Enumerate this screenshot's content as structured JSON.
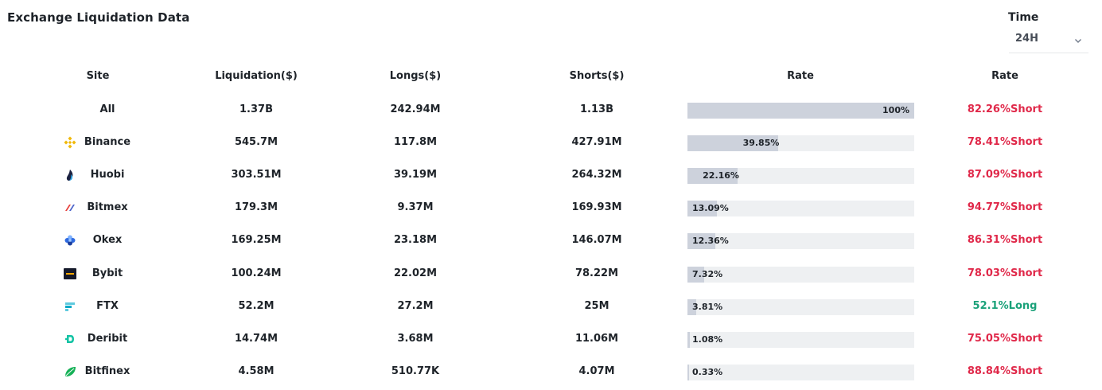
{
  "title": "Exchange Liquidation Data",
  "time": {
    "label": "Time",
    "selected": "24H"
  },
  "headers": {
    "site": "Site",
    "liquidation": "Liquidation($)",
    "longs": "Longs($)",
    "shorts": "Shorts($)",
    "rate_bar": "Rate",
    "rate_text": "Rate"
  },
  "colors": {
    "short": "#e0294a",
    "long": "#1aa179",
    "bar_fill": "#cdd2dc",
    "bar_track": "#eef0f2"
  },
  "rows": [
    {
      "site": "All",
      "icon": "",
      "liquidation": "1.37B",
      "longs": "242.94M",
      "shorts": "1.13B",
      "rate_bar_label": "100%",
      "rate_bar_value": 100,
      "rate_text": "82.26%Short",
      "side": "short"
    },
    {
      "site": "Binance",
      "icon": "binance-icon",
      "liquidation": "545.7M",
      "longs": "117.8M",
      "shorts": "427.91M",
      "rate_bar_label": "39.85%",
      "rate_bar_value": 39.85,
      "rate_text": "78.41%Short",
      "side": "short"
    },
    {
      "site": "Huobi",
      "icon": "huobi-icon",
      "liquidation": "303.51M",
      "longs": "39.19M",
      "shorts": "264.32M",
      "rate_bar_label": "22.16%",
      "rate_bar_value": 22.16,
      "rate_text": "87.09%Short",
      "side": "short"
    },
    {
      "site": "Bitmex",
      "icon": "bitmex-icon",
      "liquidation": "179.3M",
      "longs": "9.37M",
      "shorts": "169.93M",
      "rate_bar_label": "13.09%",
      "rate_bar_value": 13.09,
      "rate_text": "94.77%Short",
      "side": "short"
    },
    {
      "site": "Okex",
      "icon": "okex-icon",
      "liquidation": "169.25M",
      "longs": "23.18M",
      "shorts": "146.07M",
      "rate_bar_label": "12.36%",
      "rate_bar_value": 12.36,
      "rate_text": "86.31%Short",
      "side": "short"
    },
    {
      "site": "Bybit",
      "icon": "bybit-icon",
      "liquidation": "100.24M",
      "longs": "22.02M",
      "shorts": "78.22M",
      "rate_bar_label": "7.32%",
      "rate_bar_value": 7.32,
      "rate_text": "78.03%Short",
      "side": "short"
    },
    {
      "site": "FTX",
      "icon": "ftx-icon",
      "liquidation": "52.2M",
      "longs": "27.2M",
      "shorts": "25M",
      "rate_bar_label": "3.81%",
      "rate_bar_value": 3.81,
      "rate_text": "52.1%Long",
      "side": "long"
    },
    {
      "site": "Deribit",
      "icon": "deribit-icon",
      "liquidation": "14.74M",
      "longs": "3.68M",
      "shorts": "11.06M",
      "rate_bar_label": "1.08%",
      "rate_bar_value": 1.08,
      "rate_text": "75.05%Short",
      "side": "short"
    },
    {
      "site": "Bitfinex",
      "icon": "bitfinex-icon",
      "liquidation": "4.58M",
      "longs": "510.77K",
      "shorts": "4.07M",
      "rate_bar_label": "0.33%",
      "rate_bar_value": 0.33,
      "rate_text": "88.84%Short",
      "side": "short"
    }
  ]
}
